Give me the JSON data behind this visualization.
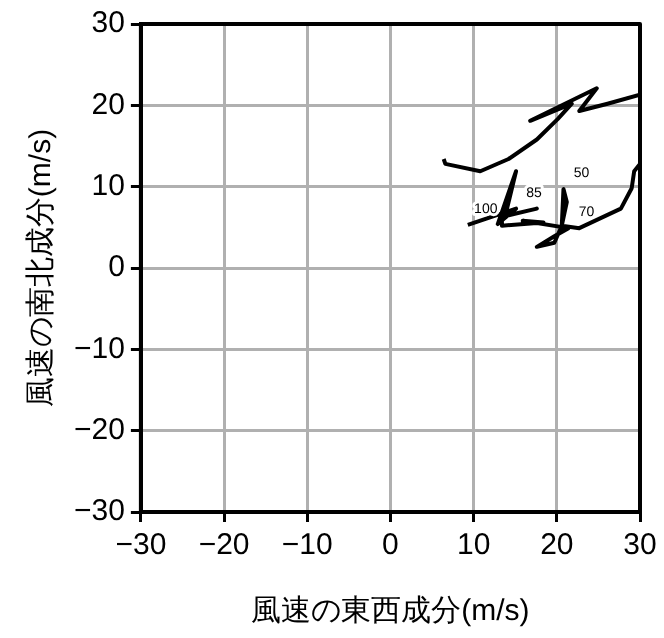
{
  "chart_data": {
    "type": "line",
    "xlabel": "風速の東西成分(m/s)",
    "ylabel": "風速の南北成分(m/s)",
    "x": [
      9.3,
      15.1,
      12.9,
      15.1,
      13.8,
      17.6,
      13.4,
      13.4,
      18.4,
      15.9,
      21.4,
      19.7,
      17.6,
      19.7,
      20.6,
      21.2,
      20.8,
      20.6,
      22.7,
      27.7,
      29.0,
      29.3,
      30.0,
      null,
      30.0,
      26.1,
      22.7,
      24.8,
      16.8,
      21.8,
      20.1,
      17.6,
      14.2,
      10.8,
      6.6,
      6.4
    ],
    "values": [
      5.3,
      7.3,
      5.4,
      11.9,
      6.4,
      7.3,
      6.3,
      5.2,
      5.6,
      5.8,
      4.9,
      3.9,
      2.6,
      3.1,
      5.2,
      8.1,
      9.7,
      5.2,
      4.9,
      7.3,
      9.8,
      11.9,
      12.8,
      null,
      21.3,
      20.2,
      19.3,
      22.1,
      18.1,
      20.2,
      18.3,
      15.8,
      13.4,
      11.9,
      12.8,
      13.4
    ],
    "color": "#000000",
    "marker": "none",
    "line_style": "solid",
    "grid": true,
    "legend": false,
    "xlim": [
      -30,
      30
    ],
    "xticks": [
      -30,
      -20,
      -10,
      0,
      10,
      20,
      30
    ],
    "ylim": [
      -30,
      30
    ],
    "yticks": [
      -30,
      -20,
      -10,
      0,
      10,
      20,
      30
    ],
    "annotations": [
      {
        "text": "100",
        "x": 9.3,
        "y": 5.3
      },
      {
        "text": "85",
        "x": 15.1,
        "y": 7.3
      },
      {
        "text": "70",
        "x": 21.4,
        "y": 4.9
      },
      {
        "text": "50",
        "x": 20.8,
        "y": 9.7
      }
    ]
  }
}
